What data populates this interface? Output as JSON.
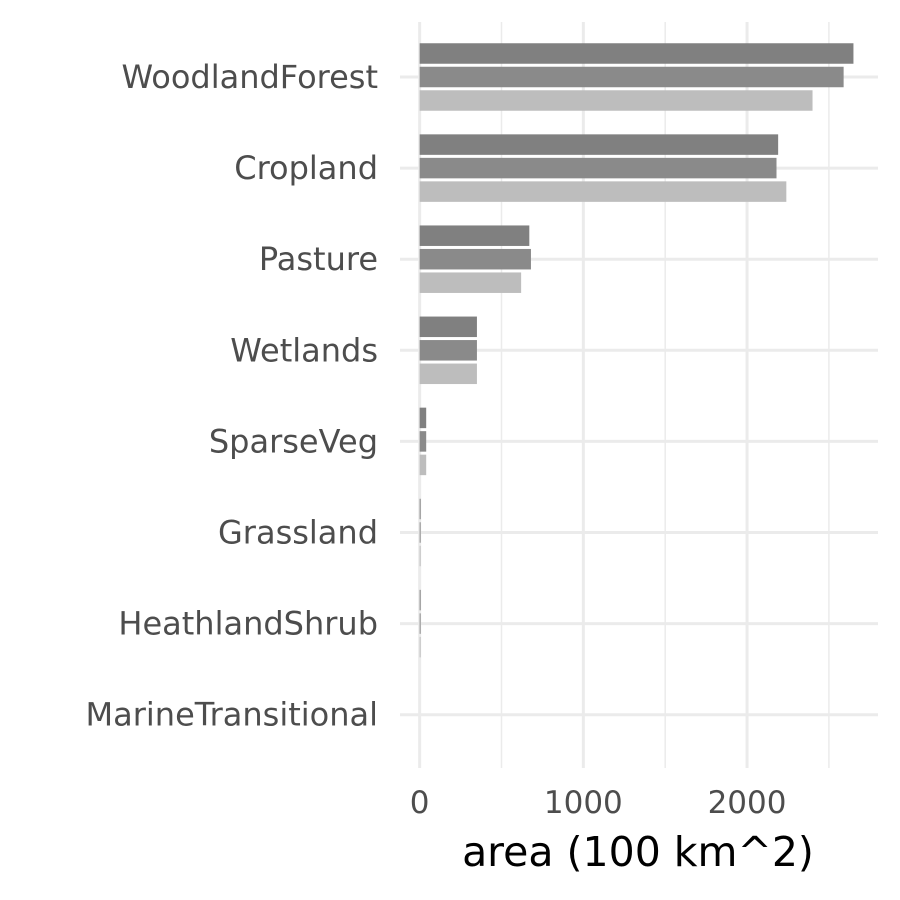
{
  "chart_data": {
    "type": "bar",
    "orientation": "horizontal",
    "title": "",
    "xlabel": "area (100 km^2)",
    "ylabel": "",
    "xlim": [
      -120,
      2800
    ],
    "xticks": [
      0,
      1000,
      2000
    ],
    "xtick_labels": [
      "0",
      "1000",
      "2000"
    ],
    "grid": true,
    "legend": "none",
    "categories": [
      "WoodlandForest",
      "Cropland",
      "Pasture",
      "Wetlands",
      "SparseVeg",
      "Grassland",
      "HeathlandShrub",
      "MarineTransitional"
    ],
    "series": [
      {
        "values": [
          2650,
          2190,
          670,
          350,
          40,
          6,
          5,
          0
        ]
      },
      {
        "values": [
          2590,
          2180,
          680,
          350,
          40,
          6,
          5,
          0
        ]
      },
      {
        "values": [
          2400,
          2240,
          620,
          350,
          40,
          6,
          3,
          0
        ]
      }
    ]
  },
  "colors": {
    "series": [
      "#808080",
      "#8a8a8a",
      "#bdbdbd"
    ],
    "grid": "#ebebeb",
    "background": "#ffffff"
  }
}
